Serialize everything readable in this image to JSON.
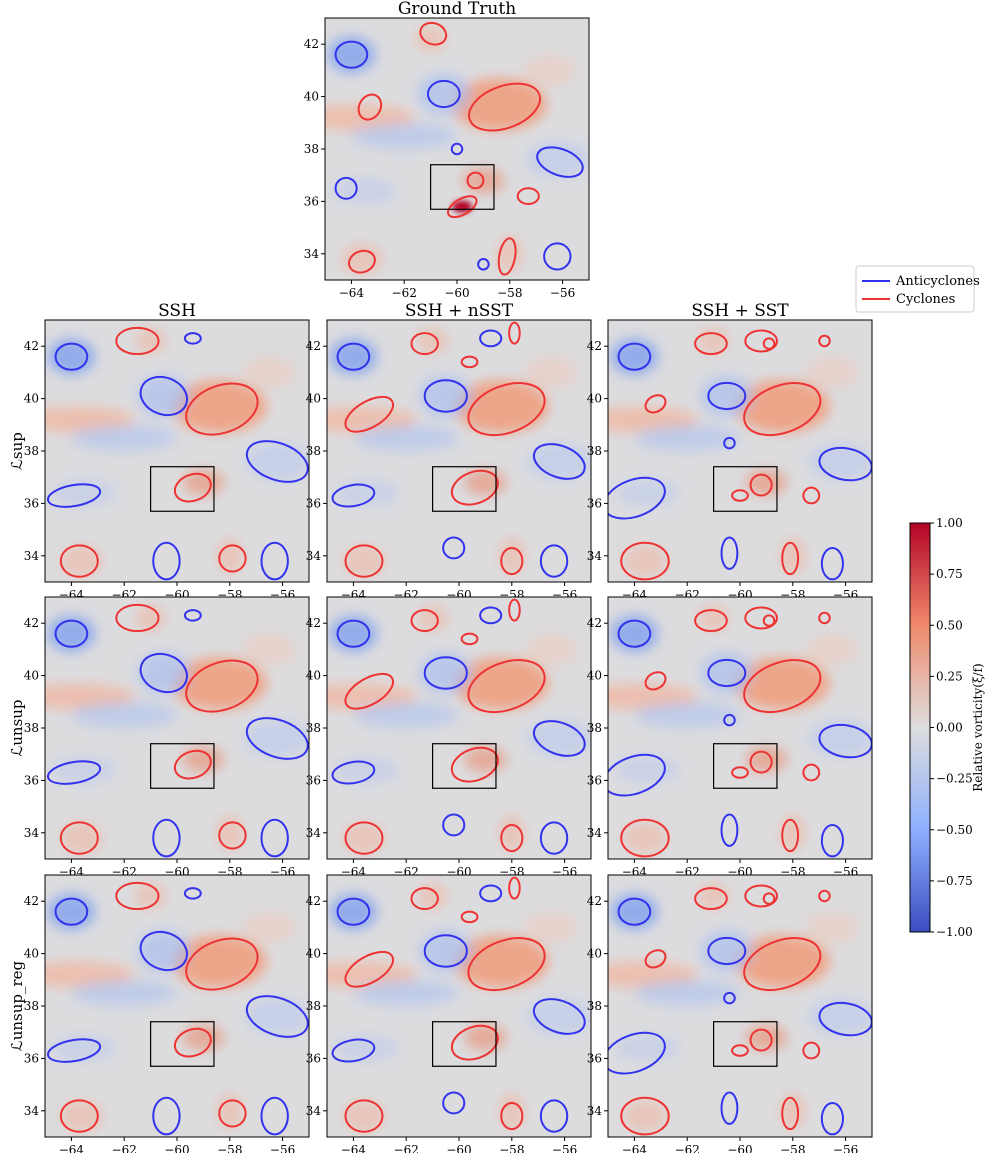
{
  "figure": {
    "legend": [
      {
        "label": "Anticyclones",
        "color": "#3333ee"
      },
      {
        "label": "Cyclones",
        "color": "#ee3333"
      }
    ],
    "colorbar": {
      "label": "Relative vorticity(ξ/f)",
      "ticks": [
        "1.00",
        "0.75",
        "0.50",
        "0.25",
        "0.00",
        "−0.25",
        "−0.50",
        "−0.75",
        "−1.00"
      ],
      "range": [
        -1.0,
        1.0
      ],
      "colormap": "coolwarm"
    },
    "row_labels": [
      "ℒsup",
      "ℒunsup",
      "ℒunsup_reg"
    ],
    "x_ticks": [
      "−64",
      "−62",
      "−60",
      "−58",
      "−56"
    ],
    "y_ticks": [
      "42",
      "40",
      "38",
      "36",
      "34"
    ]
  },
  "chart_data": [
    {
      "type": "heatmap",
      "title": "Ground Truth",
      "xlim": [
        -65,
        -55
      ],
      "ylim": [
        33,
        43
      ],
      "variable": "Relative vorticity (ξ/f)",
      "inset_box": {
        "lon": [
          -61,
          -58.6
        ],
        "lat": [
          35.7,
          37.4
        ]
      }
    },
    {
      "type": "heatmap",
      "title": "SSH",
      "row": "ℒsup",
      "xlim": [
        -65,
        -55
      ],
      "ylim": [
        33,
        43
      ],
      "inset_box": {
        "lon": [
          -61,
          -58.6
        ],
        "lat": [
          35.7,
          37.4
        ]
      }
    },
    {
      "type": "heatmap",
      "title": "SSH + nSST",
      "row": "ℒsup",
      "xlim": [
        -65,
        -55
      ],
      "ylim": [
        33,
        43
      ],
      "inset_box": {
        "lon": [
          -61,
          -58.6
        ],
        "lat": [
          35.7,
          37.4
        ]
      }
    },
    {
      "type": "heatmap",
      "title": "SSH + SST",
      "row": "ℒsup",
      "xlim": [
        -65,
        -55
      ],
      "ylim": [
        33,
        43
      ],
      "inset_box": {
        "lon": [
          -61,
          -58.6
        ],
        "lat": [
          35.7,
          37.4
        ]
      }
    },
    {
      "type": "heatmap",
      "title": "",
      "row": "ℒunsup",
      "column": "SSH",
      "xlim": [
        -65,
        -55
      ],
      "ylim": [
        33,
        43
      ],
      "inset_box": {
        "lon": [
          -61,
          -58.6
        ],
        "lat": [
          35.7,
          37.4
        ]
      }
    },
    {
      "type": "heatmap",
      "title": "",
      "row": "ℒunsup",
      "column": "SSH + nSST",
      "xlim": [
        -65,
        -55
      ],
      "ylim": [
        33,
        43
      ],
      "inset_box": {
        "lon": [
          -61,
          -58.6
        ],
        "lat": [
          35.7,
          37.4
        ]
      }
    },
    {
      "type": "heatmap",
      "title": "",
      "row": "ℒunsup",
      "column": "SSH + SST",
      "xlim": [
        -65,
        -55
      ],
      "ylim": [
        33,
        43
      ],
      "inset_box": {
        "lon": [
          -61,
          -58.6
        ],
        "lat": [
          35.7,
          37.4
        ]
      }
    },
    {
      "type": "heatmap",
      "title": "",
      "row": "ℒunsup_reg",
      "column": "SSH",
      "xlim": [
        -65,
        -55
      ],
      "ylim": [
        33,
        43
      ],
      "inset_box": {
        "lon": [
          -61,
          -58.6
        ],
        "lat": [
          35.7,
          37.4
        ]
      }
    },
    {
      "type": "heatmap",
      "title": "",
      "row": "ℒunsup_reg",
      "column": "SSH + nSST",
      "xlim": [
        -65,
        -55
      ],
      "ylim": [
        33,
        43
      ],
      "inset_box": {
        "lon": [
          -61,
          -58.6
        ],
        "lat": [
          35.7,
          37.4
        ]
      }
    },
    {
      "type": "heatmap",
      "title": "",
      "row": "ℒunsup_reg",
      "column": "SSH + SST",
      "xlim": [
        -65,
        -55
      ],
      "ylim": [
        33,
        43
      ],
      "inset_box": {
        "lon": [
          -61,
          -58.6
        ],
        "lat": [
          35.7,
          37.4
        ]
      }
    }
  ]
}
